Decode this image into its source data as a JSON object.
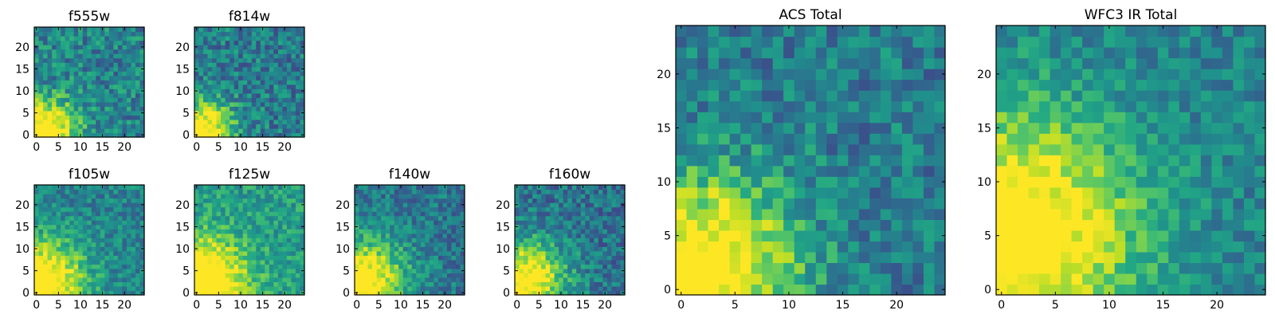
{
  "chart_data": [
    {
      "type": "heatmap",
      "title": "f555w",
      "grid_size": 25,
      "colormap": "viridis",
      "xticks": [
        0,
        5,
        10,
        15,
        20
      ],
      "yticks": [
        0,
        5,
        10,
        15,
        20
      ],
      "xtick_labels": [
        "0",
        "5",
        "10",
        "15",
        "20"
      ],
      "ytick_labels": [
        "0",
        "5",
        "10",
        "15",
        "20"
      ],
      "bright_corner": "bottom-left",
      "peak": [
        2,
        1
      ],
      "peak_value": 1.0,
      "falloff": 5,
      "background": 0.45,
      "noise": 0.2,
      "seed": 11
    },
    {
      "type": "heatmap",
      "title": "f814w",
      "grid_size": 25,
      "colormap": "viridis",
      "xticks": [
        0,
        5,
        10,
        15,
        20
      ],
      "yticks": [
        0,
        5,
        10,
        15,
        20
      ],
      "xtick_labels": [
        "0",
        "5",
        "10",
        "15",
        "20"
      ],
      "ytick_labels": [
        "0",
        "5",
        "10",
        "15",
        "20"
      ],
      "bright_corner": "bottom-left",
      "peak": [
        1,
        1
      ],
      "peak_value": 1.0,
      "falloff": 5,
      "background": 0.42,
      "noise": 0.2,
      "seed": 23
    },
    {
      "type": "heatmap",
      "title": "f105w",
      "grid_size": 25,
      "colormap": "viridis",
      "xticks": [
        0,
        5,
        10,
        15,
        20
      ],
      "yticks": [
        0,
        5,
        10,
        15,
        20
      ],
      "xtick_labels": [
        "0",
        "5",
        "10",
        "15",
        "20"
      ],
      "ytick_labels": [
        "0",
        "5",
        "10",
        "15",
        "20"
      ],
      "bright_corner": "bottom-left",
      "peak": [
        1,
        2
      ],
      "peak_value": 1.0,
      "falloff": 7,
      "background": 0.45,
      "noise": 0.16,
      "seed": 37
    },
    {
      "type": "heatmap",
      "title": "f125w",
      "grid_size": 25,
      "colormap": "viridis",
      "xticks": [
        0,
        5,
        10,
        15,
        20
      ],
      "yticks": [
        0,
        5,
        10,
        15,
        20
      ],
      "xtick_labels": [
        "0",
        "5",
        "10",
        "15",
        "20"
      ],
      "ytick_labels": [
        "0",
        "5",
        "10",
        "15",
        "20"
      ],
      "bright_corner": "bottom-left",
      "peak": [
        1,
        2
      ],
      "peak_value": 1.0,
      "falloff": 7,
      "background": 0.55,
      "noise": 0.16,
      "seed": 41
    },
    {
      "type": "heatmap",
      "title": "f140w",
      "grid_size": 25,
      "colormap": "viridis",
      "xticks": [
        0,
        5,
        10,
        15,
        20
      ],
      "yticks": [
        0,
        5,
        10,
        15,
        20
      ],
      "xtick_labels": [
        "0",
        "5",
        "10",
        "15",
        "20"
      ],
      "ytick_labels": [
        "0",
        "5",
        "10",
        "15",
        "20"
      ],
      "bright_corner": "bottom-left",
      "peak": [
        1,
        2
      ],
      "peak_value": 1.0,
      "falloff": 7,
      "background": 0.4,
      "noise": 0.17,
      "seed": 53
    },
    {
      "type": "heatmap",
      "title": "f160w",
      "grid_size": 25,
      "colormap": "viridis",
      "xticks": [
        0,
        5,
        10,
        15,
        20
      ],
      "yticks": [
        0,
        5,
        10,
        15,
        20
      ],
      "xtick_labels": [
        "0",
        "5",
        "10",
        "15",
        "20"
      ],
      "ytick_labels": [
        "0",
        "5",
        "10",
        "15",
        "20"
      ],
      "bright_corner": "bottom-left",
      "peak": [
        1,
        2
      ],
      "peak_value": 1.0,
      "falloff": 7,
      "background": 0.38,
      "noise": 0.18,
      "seed": 67
    },
    {
      "type": "heatmap",
      "title": "ACS Total",
      "grid_size": 25,
      "colormap": "viridis",
      "xticks": [
        0,
        5,
        10,
        15,
        20
      ],
      "yticks": [
        0,
        5,
        10,
        15,
        20
      ],
      "xtick_labels": [
        "0",
        "5",
        "10",
        "15",
        "20"
      ],
      "ytick_labels": [
        "0",
        "5",
        "10",
        "15",
        "20"
      ],
      "bright_corner": "bottom-left",
      "peak": [
        2,
        2
      ],
      "peak_value": 1.0,
      "falloff": 6,
      "background": 0.42,
      "noise": 0.18,
      "seed": 79
    },
    {
      "type": "heatmap",
      "title": "WFC3 IR Total",
      "grid_size": 25,
      "colormap": "viridis",
      "xticks": [
        0,
        5,
        10,
        15,
        20
      ],
      "yticks": [
        0,
        5,
        10,
        15,
        20
      ],
      "xtick_labels": [
        "0",
        "5",
        "10",
        "15",
        "20"
      ],
      "ytick_labels": [
        "0",
        "5",
        "10",
        "15",
        "20"
      ],
      "bright_corner": "bottom-left",
      "peak": [
        1,
        5
      ],
      "peak_value": 1.0,
      "falloff": 8,
      "background": 0.44,
      "noise": 0.14,
      "seed": 97
    }
  ]
}
